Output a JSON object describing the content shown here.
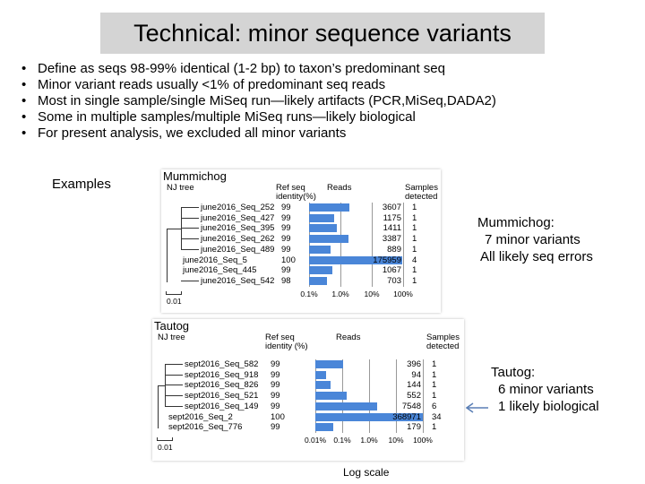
{
  "title": "Technical: minor sequence variants",
  "bullets": [
    "Define as seqs 98-99% identical (1-2 bp) to taxon’s predominant seq",
    "Minor variant reads usually <1% of predominant seq reads",
    "Most in single sample/single MiSeq run—likely artifacts (PCR,MiSeq,DADA2)",
    "Some in multiple samples/multiple MiSeq runs—likely biological",
    "For present analysis, we excluded all minor variants"
  ],
  "examples_label": "Examples",
  "log_scale_label": "Log scale",
  "figures": [
    {
      "title": "Mummichog",
      "tree_label": "NJ tree",
      "ref_label": "Ref seq identity(%)",
      "reads_label": "Reads",
      "samples_label": "Samples detected",
      "scale_bar": "0.01",
      "axis_ticks": [
        "0.1%",
        "1.0%",
        "10%",
        "100%"
      ],
      "min_decade": -3,
      "rows": [
        {
          "name": "june2016_Seq_252",
          "identity": "99",
          "reads": "3607",
          "samples": "1",
          "indent": 1
        },
        {
          "name": "june2016_Seq_427",
          "identity": "99",
          "reads": "1175",
          "samples": "1",
          "indent": 1
        },
        {
          "name": "june2016_Seq_395",
          "identity": "99",
          "reads": "1411",
          "samples": "1",
          "indent": 1
        },
        {
          "name": "june2016_Seq_262",
          "identity": "99",
          "reads": "3387",
          "samples": "1",
          "indent": 1
        },
        {
          "name": "june2016_Seq_489",
          "identity": "99",
          "reads": "889",
          "samples": "1",
          "indent": 1
        },
        {
          "name": "june2016_Seq_5",
          "identity": "100",
          "reads": "175959",
          "samples": "4",
          "indent": 0
        },
        {
          "name": "june2016_Seq_445",
          "identity": "99",
          "reads": "1067",
          "samples": "1",
          "indent": 0
        },
        {
          "name": "june2016_Seq_542",
          "identity": "98",
          "reads": "703",
          "samples": "1",
          "indent": 1
        }
      ]
    },
    {
      "title": "Tautog",
      "tree_label": "NJ tree",
      "ref_label": "Ref seq identity (%)",
      "reads_label": "Reads",
      "samples_label": "Samples detected",
      "scale_bar": "0.01",
      "axis_ticks": [
        "0.01%",
        "0.1%",
        "1.0%",
        "10%",
        "100%"
      ],
      "min_decade": -4,
      "rows": [
        {
          "name": "sept2016_Seq_582",
          "identity": "99",
          "reads": "396",
          "samples": "1",
          "indent": 1
        },
        {
          "name": "sept2016_Seq_918",
          "identity": "99",
          "reads": "94",
          "samples": "1",
          "indent": 1
        },
        {
          "name": "sept2016_Seq_826",
          "identity": "99",
          "reads": "144",
          "samples": "1",
          "indent": 1
        },
        {
          "name": "sept2016_Seq_521",
          "identity": "99",
          "reads": "552",
          "samples": "1",
          "indent": 1
        },
        {
          "name": "sept2016_Seq_149",
          "identity": "99",
          "reads": "7548",
          "samples": "6",
          "indent": 1
        },
        {
          "name": "sept2016_Seq_2",
          "identity": "100",
          "reads": "368971",
          "samples": "34",
          "indent": 0
        },
        {
          "name": "sept2016_Seq_776",
          "identity": "99",
          "reads": "179",
          "samples": "1",
          "indent": 0
        }
      ]
    }
  ],
  "mummichog_note": {
    "title": "Mummichog:",
    "line1": "7 minor variants",
    "line2": "All likely seq errors"
  },
  "tautog_note": {
    "title": "Tautog:",
    "line1": "6 minor variants",
    "line2": "1 likely biological"
  },
  "colors": {
    "bar": "#4a86d8",
    "title_bg": "#d4d4d4",
    "arrow": "#5a7fb5"
  }
}
